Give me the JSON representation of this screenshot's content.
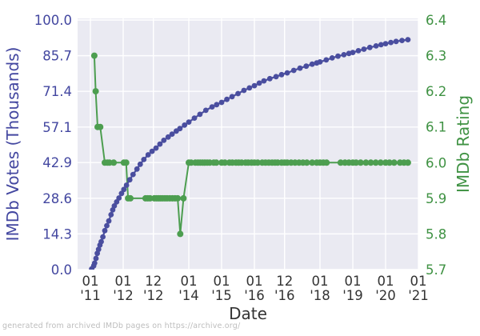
{
  "caption": "generated from archived IMDb pages on https://archive.org/",
  "chart_data": {
    "type": "line",
    "title": "",
    "xlabel": "Date",
    "ylabel_left": "IMDb Votes (Thousands)",
    "ylabel_right": "IMDb Rating",
    "grid": true,
    "legend": "none",
    "xlim": [
      2010.61,
      2021.0
    ],
    "ylim_left": [
      0,
      100.64
    ],
    "ylim_right": [
      5.7,
      6.4045
    ],
    "x_ticks": [
      {
        "x": 2011.0,
        "line1": "01",
        "line2": "'11"
      },
      {
        "x": 2012.0,
        "line1": "01",
        "line2": "'12"
      },
      {
        "x": 2012.92,
        "line1": "12",
        "line2": "'12"
      },
      {
        "x": 2014.0,
        "line1": "01",
        "line2": "'14"
      },
      {
        "x": 2015.0,
        "line1": "01",
        "line2": "'15"
      },
      {
        "x": 2016.0,
        "line1": "01",
        "line2": "'16"
      },
      {
        "x": 2016.92,
        "line1": "12",
        "line2": "'16"
      },
      {
        "x": 2018.0,
        "line1": "01",
        "line2": "'18"
      },
      {
        "x": 2019.0,
        "line1": "01",
        "line2": "'19"
      },
      {
        "x": 2020.0,
        "line1": "01",
        "line2": "'20"
      },
      {
        "x": 2021.0,
        "line1": "01",
        "line2": "'21"
      }
    ],
    "y_ticks_left": [
      {
        "v": 100.0,
        "label": "100.0"
      },
      {
        "v": 85.7,
        "label": "85.7"
      },
      {
        "v": 71.4,
        "label": "71.4"
      },
      {
        "v": 57.1,
        "label": "57.1"
      },
      {
        "v": 42.9,
        "label": "42.9"
      },
      {
        "v": 28.6,
        "label": "28.6"
      },
      {
        "v": 14.3,
        "label": "14.3"
      },
      {
        "v": 0.0,
        "label": "0.0"
      }
    ],
    "y_ticks_right": [
      {
        "v": 6.4,
        "label": "6.4"
      },
      {
        "v": 6.3,
        "label": "6.3"
      },
      {
        "v": 6.2,
        "label": "6.2"
      },
      {
        "v": 6.1,
        "label": "6.1"
      },
      {
        "v": 6.0,
        "label": "6.0"
      },
      {
        "v": 5.9,
        "label": "5.9"
      },
      {
        "v": 5.8,
        "label": "5.8"
      },
      {
        "v": 5.7,
        "label": "5.7"
      }
    ],
    "colors": {
      "votes_line": "#4A4E9F",
      "votes_text": "#4347A0",
      "rating_line": "#4D9E50",
      "rating_text": "#3F9243",
      "x_text": "#333333",
      "plot_bg": "#EAEAF2",
      "grid": "#FFFFFF",
      "caption": "#BDBDBD",
      "figure_bg": "#FFFFFF"
    },
    "series": [
      {
        "name": "IMDb Rating",
        "axis": "right",
        "color": "#4D9E50",
        "marker_radius": 4,
        "line_width": 2,
        "points": [
          [
            2011.12,
            6.3
          ],
          [
            2011.16,
            6.2
          ],
          [
            2011.22,
            6.1
          ],
          [
            2011.3,
            6.1
          ],
          [
            2011.44,
            6.0
          ],
          [
            2011.52,
            6.0
          ],
          [
            2011.58,
            6.0
          ],
          [
            2011.71,
            6.0
          ],
          [
            2012.02,
            6.0
          ],
          [
            2012.09,
            6.0
          ],
          [
            2012.15,
            5.9
          ],
          [
            2012.22,
            5.9
          ],
          [
            2012.68,
            5.9
          ],
          [
            2012.75,
            5.9
          ],
          [
            2012.82,
            5.9
          ],
          [
            2012.95,
            5.9
          ],
          [
            2013.02,
            5.9
          ],
          [
            2013.08,
            5.9
          ],
          [
            2013.14,
            5.9
          ],
          [
            2013.2,
            5.9
          ],
          [
            2013.27,
            5.9
          ],
          [
            2013.34,
            5.9
          ],
          [
            2013.42,
            5.9
          ],
          [
            2013.5,
            5.9
          ],
          [
            2013.58,
            5.9
          ],
          [
            2013.66,
            5.9
          ],
          [
            2013.74,
            5.8
          ],
          [
            2013.84,
            5.9
          ],
          [
            2014.0,
            6.0
          ],
          [
            2014.07,
            6.0
          ],
          [
            2014.2,
            6.0
          ],
          [
            2014.28,
            6.0
          ],
          [
            2014.35,
            6.0
          ],
          [
            2014.42,
            6.0
          ],
          [
            2014.49,
            6.0
          ],
          [
            2014.56,
            6.0
          ],
          [
            2014.64,
            6.0
          ],
          [
            2014.76,
            6.0
          ],
          [
            2014.84,
            6.0
          ],
          [
            2015.0,
            6.0
          ],
          [
            2015.1,
            6.0
          ],
          [
            2015.24,
            6.0
          ],
          [
            2015.33,
            6.0
          ],
          [
            2015.44,
            6.0
          ],
          [
            2015.52,
            6.0
          ],
          [
            2015.61,
            6.0
          ],
          [
            2015.73,
            6.0
          ],
          [
            2015.81,
            6.0
          ],
          [
            2015.91,
            6.0
          ],
          [
            2016.0,
            6.0
          ],
          [
            2016.1,
            6.0
          ],
          [
            2016.24,
            6.0
          ],
          [
            2016.34,
            6.0
          ],
          [
            2016.44,
            6.0
          ],
          [
            2016.54,
            6.0
          ],
          [
            2016.63,
            6.0
          ],
          [
            2016.71,
            6.0
          ],
          [
            2016.83,
            6.0
          ],
          [
            2016.92,
            6.0
          ],
          [
            2017.0,
            6.0
          ],
          [
            2017.12,
            6.0
          ],
          [
            2017.24,
            6.0
          ],
          [
            2017.36,
            6.0
          ],
          [
            2017.48,
            6.0
          ],
          [
            2017.6,
            6.0
          ],
          [
            2017.76,
            6.0
          ],
          [
            2017.9,
            6.0
          ],
          [
            2018.0,
            6.0
          ],
          [
            2018.1,
            6.0
          ],
          [
            2018.2,
            6.0
          ],
          [
            2018.63,
            6.0
          ],
          [
            2018.76,
            6.0
          ],
          [
            2018.88,
            6.0
          ],
          [
            2019.0,
            6.0
          ],
          [
            2019.1,
            6.0
          ],
          [
            2019.24,
            6.0
          ],
          [
            2019.4,
            6.0
          ],
          [
            2019.55,
            6.0
          ],
          [
            2019.7,
            6.0
          ],
          [
            2019.85,
            6.0
          ],
          [
            2020.0,
            6.0
          ],
          [
            2020.12,
            6.0
          ],
          [
            2020.26,
            6.0
          ],
          [
            2020.44,
            6.0
          ],
          [
            2020.56,
            6.0
          ],
          [
            2020.68,
            6.0
          ]
        ]
      },
      {
        "name": "IMDb Votes (Thousands)",
        "axis": "left",
        "color": "#4A4E9F",
        "marker_radius": 3.4,
        "line_width": 2.2,
        "points": [
          [
            2011.04,
            0.3
          ],
          [
            2011.1,
            1.5
          ],
          [
            2011.13,
            2.6
          ],
          [
            2011.17,
            4.5
          ],
          [
            2011.21,
            6.5
          ],
          [
            2011.25,
            8.1
          ],
          [
            2011.29,
            9.8
          ],
          [
            2011.33,
            11.2
          ],
          [
            2011.38,
            13.1
          ],
          [
            2011.44,
            15.6
          ],
          [
            2011.5,
            17.6
          ],
          [
            2011.56,
            19.5
          ],
          [
            2011.63,
            22.0
          ],
          [
            2011.68,
            23.9
          ],
          [
            2011.73,
            25.5
          ],
          [
            2011.8,
            27.1
          ],
          [
            2011.87,
            28.7
          ],
          [
            2011.95,
            30.5
          ],
          [
            2012.02,
            32.1
          ],
          [
            2012.1,
            33.8
          ],
          [
            2012.2,
            36.0
          ],
          [
            2012.3,
            38.1
          ],
          [
            2012.42,
            40.3
          ],
          [
            2012.52,
            42.2
          ],
          [
            2012.63,
            44.1
          ],
          [
            2012.76,
            46.0
          ],
          [
            2012.88,
            47.4
          ],
          [
            2013.0,
            48.7
          ],
          [
            2013.12,
            50.3
          ],
          [
            2013.24,
            51.8
          ],
          [
            2013.37,
            53.1
          ],
          [
            2013.49,
            54.3
          ],
          [
            2013.62,
            55.5
          ],
          [
            2013.73,
            56.5
          ],
          [
            2013.87,
            57.9
          ],
          [
            2014.0,
            59.1
          ],
          [
            2014.17,
            60.7
          ],
          [
            2014.34,
            62.2
          ],
          [
            2014.52,
            63.8
          ],
          [
            2014.71,
            65.2
          ],
          [
            2014.85,
            66.1
          ],
          [
            2015.0,
            67.0
          ],
          [
            2015.16,
            68.2
          ],
          [
            2015.32,
            69.3
          ],
          [
            2015.5,
            70.5
          ],
          [
            2015.68,
            71.8
          ],
          [
            2015.85,
            72.8
          ],
          [
            2016.0,
            73.7
          ],
          [
            2016.15,
            74.7
          ],
          [
            2016.29,
            75.6
          ],
          [
            2016.47,
            76.5
          ],
          [
            2016.66,
            77.3
          ],
          [
            2016.83,
            78.1
          ],
          [
            2017.0,
            78.8
          ],
          [
            2017.2,
            79.8
          ],
          [
            2017.39,
            80.7
          ],
          [
            2017.58,
            81.5
          ],
          [
            2017.76,
            82.3
          ],
          [
            2017.9,
            82.8
          ],
          [
            2018.0,
            83.2
          ],
          [
            2018.19,
            84.0
          ],
          [
            2018.37,
            84.8
          ],
          [
            2018.55,
            85.5
          ],
          [
            2018.73,
            86.1
          ],
          [
            2018.88,
            86.6
          ],
          [
            2019.0,
            87.0
          ],
          [
            2019.17,
            87.7
          ],
          [
            2019.34,
            88.3
          ],
          [
            2019.52,
            89.0
          ],
          [
            2019.71,
            89.6
          ],
          [
            2019.86,
            90.1
          ],
          [
            2020.0,
            90.5
          ],
          [
            2020.16,
            91.0
          ],
          [
            2020.32,
            91.4
          ],
          [
            2020.5,
            91.8
          ],
          [
            2020.68,
            92.1
          ]
        ]
      }
    ]
  }
}
